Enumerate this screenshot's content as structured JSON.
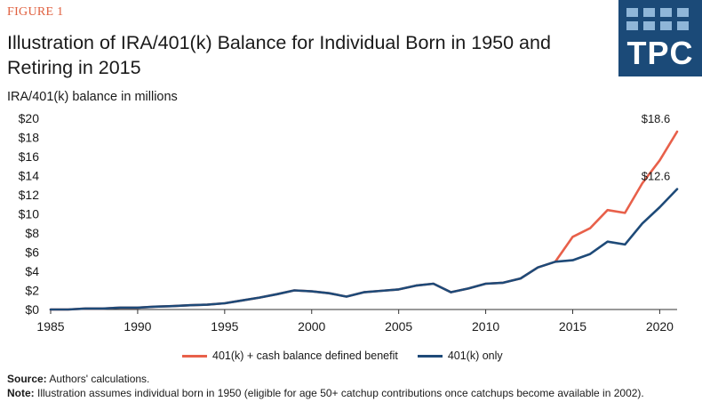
{
  "header": {
    "figure_label": "FIGURE 1",
    "title": "Illustration of IRA/401(k) Balance for Individual Born in 1950 and Retiring in 2015",
    "logo_text": "TPC"
  },
  "colors": {
    "orange": "#e8604a",
    "navy": "#1e4a78",
    "logo_bg": "#1b4a78",
    "axis": "#333333"
  },
  "chart_data": {
    "type": "line",
    "ylabel": "IRA/401(k) balance in millions",
    "xlim": [
      1985,
      2021
    ],
    "ylim": [
      0,
      20
    ],
    "x_ticks": [
      "1985",
      "1990",
      "1995",
      "2000",
      "2005",
      "2010",
      "2015",
      "2020"
    ],
    "y_ticks": [
      "$0",
      "$2",
      "$4",
      "$6",
      "$8",
      "$10",
      "$12",
      "$14",
      "$16",
      "$18",
      "$20"
    ],
    "x": [
      1985,
      1986,
      1987,
      1988,
      1989,
      1990,
      1991,
      1992,
      1993,
      1994,
      1995,
      1996,
      1997,
      1998,
      1999,
      2000,
      2001,
      2002,
      2003,
      2004,
      2005,
      2006,
      2007,
      2008,
      2009,
      2010,
      2011,
      2012,
      2013,
      2014,
      2015,
      2016,
      2017,
      2018,
      2019,
      2020,
      2021
    ],
    "series": [
      {
        "name": "401(k) + cash balance defined benefit",
        "color": "#e8604a",
        "values": [
          0,
          0,
          0.1,
          0.1,
          0.2,
          0.2,
          0.3,
          0.35,
          0.45,
          0.5,
          0.65,
          0.95,
          1.25,
          1.6,
          2.0,
          1.9,
          1.7,
          1.35,
          1.8,
          1.95,
          2.1,
          2.5,
          2.7,
          1.8,
          2.2,
          2.7,
          2.8,
          3.25,
          4.4,
          5.0,
          7.6,
          8.5,
          10.4,
          10.1,
          13.2,
          15.6,
          18.6
        ]
      },
      {
        "name": "401(k) only",
        "color": "#1e4a78",
        "values": [
          0,
          0,
          0.1,
          0.1,
          0.2,
          0.2,
          0.3,
          0.35,
          0.45,
          0.5,
          0.65,
          0.95,
          1.25,
          1.6,
          2.0,
          1.9,
          1.7,
          1.35,
          1.8,
          1.95,
          2.1,
          2.5,
          2.7,
          1.8,
          2.2,
          2.7,
          2.8,
          3.25,
          4.4,
          5.0,
          5.15,
          5.8,
          7.1,
          6.8,
          9.0,
          10.7,
          12.6
        ]
      }
    ],
    "annotations": [
      "$18.6",
      "$12.6"
    ]
  },
  "footer": {
    "source_label": "Source:",
    "source_text": " Authors' calculations.",
    "note_label": "Note:",
    "note_text": " Illustration assumes individual born in 1950 (eligible for age 50+ catchup contributions once catchups become available in 2002)."
  }
}
